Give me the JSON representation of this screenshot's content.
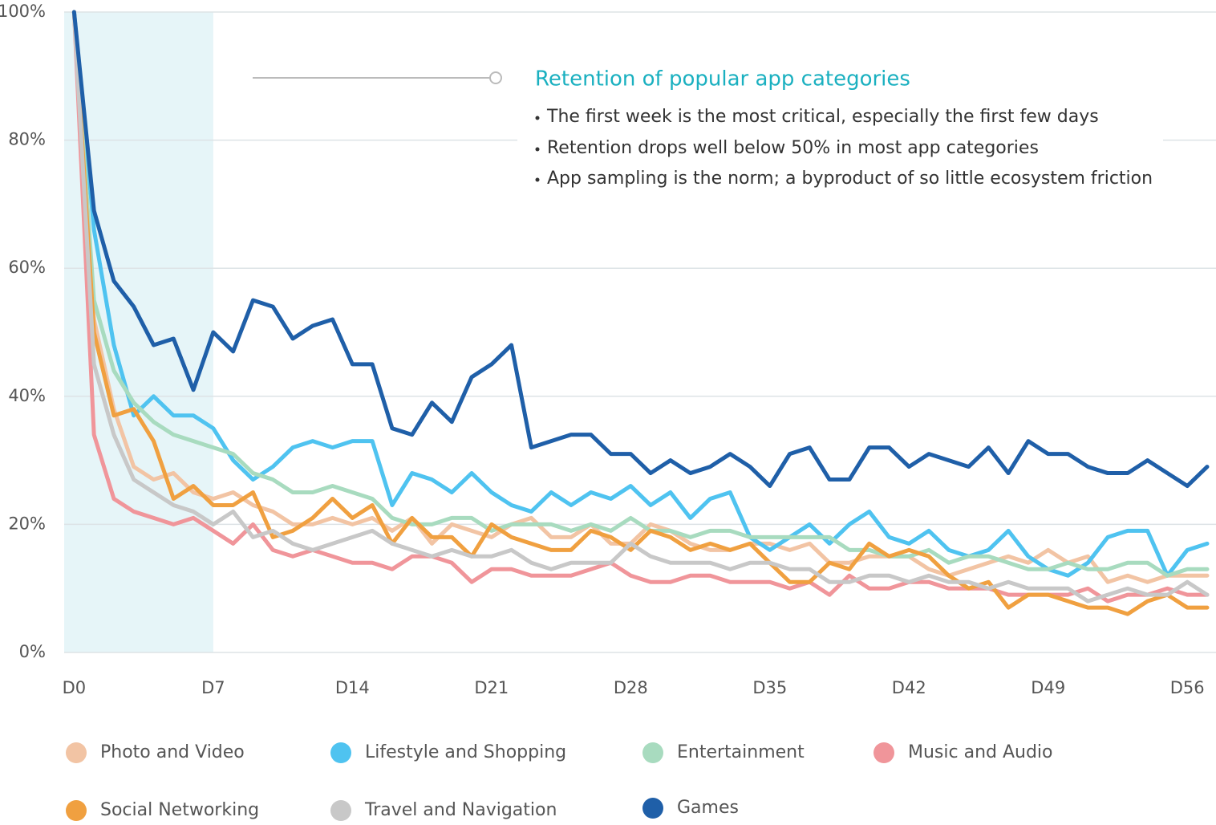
{
  "chart_data": {
    "type": "line",
    "annotation": {
      "title": "Retention of popular app categories",
      "bullets": [
        "The first week is the most critical, especially the first few days",
        "Retention drops well below 50% in most app categories",
        "App sampling is the norm; a byproduct of so little ecosystem friction"
      ]
    },
    "x": [
      0,
      1,
      2,
      3,
      4,
      5,
      6,
      7,
      8,
      9,
      10,
      11,
      12,
      13,
      14,
      15,
      16,
      17,
      18,
      19,
      20,
      21,
      22,
      23,
      24,
      25,
      26,
      27,
      28,
      29,
      30,
      31,
      32,
      33,
      34,
      35,
      36,
      37,
      38,
      39,
      40,
      41,
      42,
      43,
      44,
      45,
      46,
      47,
      48,
      49,
      50,
      51,
      52,
      53,
      54,
      55,
      56,
      57
    ],
    "xlim": [
      -0.5,
      57
    ],
    "xticks": [
      {
        "value": 0,
        "label": "D0"
      },
      {
        "value": 7,
        "label": "D7"
      },
      {
        "value": 14,
        "label": "D14"
      },
      {
        "value": 21,
        "label": "D21"
      },
      {
        "value": 28,
        "label": "D28"
      },
      {
        "value": 35,
        "label": "D35"
      },
      {
        "value": 42,
        "label": "D42"
      },
      {
        "value": 49,
        "label": "D49"
      },
      {
        "value": 56,
        "label": "D56"
      }
    ],
    "ylim": [
      0,
      100
    ],
    "yticks": [
      {
        "value": 0,
        "label": "0%"
      },
      {
        "value": 20,
        "label": "20%"
      },
      {
        "value": 40,
        "label": "40%"
      },
      {
        "value": 60,
        "label": "60%"
      },
      {
        "value": 80,
        "label": "80%"
      },
      {
        "value": 100,
        "label": "100%"
      }
    ],
    "grid": true,
    "shaded_range": [
      -0.5,
      7
    ],
    "series": [
      {
        "name": "Photo and Video",
        "color": "#f2c4a4",
        "values": [
          100,
          52,
          38,
          29,
          27,
          28,
          25,
          24,
          25,
          23,
          22,
          20,
          20,
          21,
          20,
          21,
          19,
          21,
          17,
          20,
          19,
          18,
          20,
          21,
          18,
          18,
          20,
          17,
          17,
          20,
          19,
          17,
          16,
          16,
          17,
          17,
          16,
          17,
          14,
          14,
          15,
          15,
          15,
          13,
          12,
          13,
          14,
          15,
          14,
          16,
          14,
          15,
          11,
          12,
          11,
          12,
          12,
          12
        ]
      },
      {
        "name": "Lifestyle and Shopping",
        "color": "#4fc3f0",
        "values": [
          100,
          66,
          48,
          37,
          40,
          37,
          37,
          35,
          30,
          27,
          29,
          32,
          33,
          32,
          33,
          33,
          23,
          28,
          27,
          25,
          28,
          25,
          23,
          22,
          25,
          23,
          25,
          24,
          26,
          23,
          25,
          21,
          24,
          25,
          18,
          16,
          18,
          20,
          17,
          20,
          22,
          18,
          17,
          19,
          16,
          15,
          16,
          19,
          15,
          13,
          12,
          14,
          18,
          19,
          19,
          12,
          16,
          17
        ]
      },
      {
        "name": "Entertainment",
        "color": "#a8dbbf",
        "values": [
          100,
          55,
          44,
          39,
          36,
          34,
          33,
          32,
          31,
          28,
          27,
          25,
          25,
          26,
          25,
          24,
          21,
          20,
          20,
          21,
          21,
          19,
          20,
          20,
          20,
          19,
          20,
          19,
          21,
          19,
          19,
          18,
          19,
          19,
          18,
          18,
          18,
          18,
          18,
          16,
          16,
          15,
          15,
          16,
          14,
          15,
          15,
          14,
          13,
          13,
          14,
          13,
          13,
          14,
          14,
          12,
          13,
          13
        ]
      },
      {
        "name": "Music and Audio",
        "color": "#f0959a",
        "values": [
          100,
          34,
          24,
          22,
          21,
          20,
          21,
          19,
          17,
          20,
          16,
          15,
          16,
          15,
          14,
          14,
          13,
          15,
          15,
          14,
          11,
          13,
          13,
          12,
          12,
          12,
          13,
          14,
          12,
          11,
          11,
          12,
          12,
          11,
          11,
          11,
          10,
          11,
          9,
          12,
          10,
          10,
          11,
          11,
          10,
          10,
          10,
          9,
          9,
          9,
          9,
          10,
          8,
          9,
          9,
          10,
          9,
          9
        ]
      },
      {
        "name": "Social Networking",
        "color": "#f0a040",
        "values": [
          100,
          50,
          37,
          38,
          33,
          24,
          26,
          23,
          23,
          25,
          18,
          19,
          21,
          24,
          21,
          23,
          17,
          21,
          18,
          18,
          15,
          20,
          18,
          17,
          16,
          16,
          19,
          18,
          16,
          19,
          18,
          16,
          17,
          16,
          17,
          14,
          11,
          11,
          14,
          13,
          17,
          15,
          16,
          15,
          12,
          10,
          11,
          7,
          9,
          9,
          8,
          7,
          7,
          6,
          8,
          9,
          7,
          7
        ]
      },
      {
        "name": "Travel and Navigation",
        "color": "#c8c8c8",
        "values": [
          100,
          45,
          34,
          27,
          25,
          23,
          22,
          20,
          22,
          18,
          19,
          17,
          16,
          17,
          18,
          19,
          17,
          16,
          15,
          16,
          15,
          15,
          16,
          14,
          13,
          14,
          14,
          14,
          17,
          15,
          14,
          14,
          14,
          13,
          14,
          14,
          13,
          13,
          11,
          11,
          12,
          12,
          11,
          12,
          11,
          11,
          10,
          11,
          10,
          10,
          10,
          8,
          9,
          10,
          9,
          9,
          11,
          9
        ]
      },
      {
        "name": "Games",
        "color": "#1f5fa8",
        "values": [
          100,
          69,
          58,
          54,
          48,
          49,
          41,
          50,
          47,
          55,
          54,
          49,
          51,
          52,
          45,
          45,
          35,
          34,
          39,
          36,
          43,
          45,
          48,
          32,
          33,
          34,
          34,
          31,
          31,
          28,
          30,
          28,
          29,
          31,
          29,
          26,
          31,
          32,
          27,
          27,
          32,
          32,
          29,
          31,
          30,
          29,
          32,
          28,
          33,
          31,
          31,
          29,
          28,
          28,
          30,
          28,
          26,
          29
        ]
      }
    ]
  }
}
